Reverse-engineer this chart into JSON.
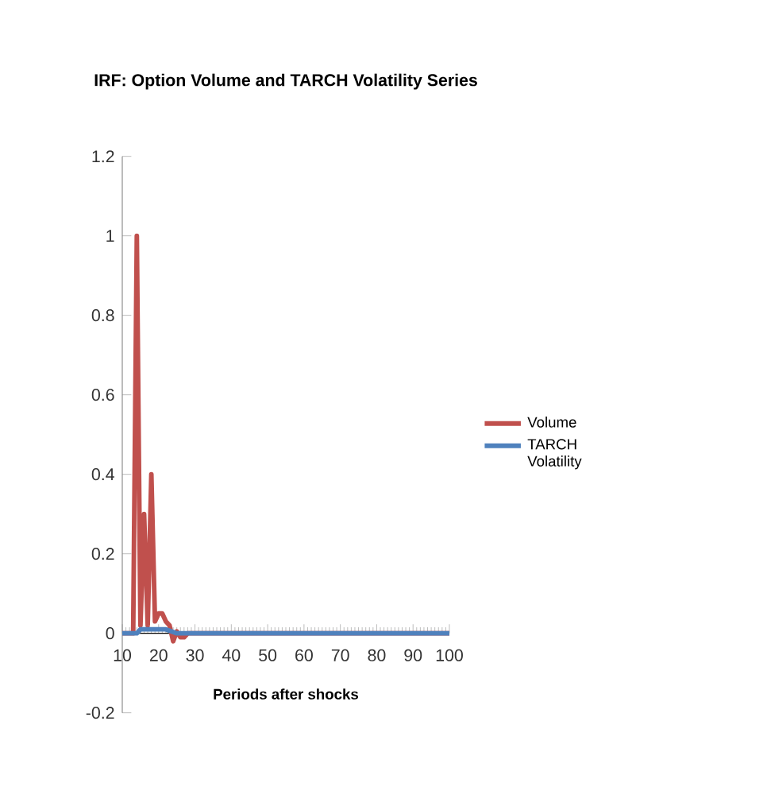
{
  "chart_data": {
    "type": "line",
    "title": "IRF: Option Volume and TARCH Volatility Series",
    "xlabel": "Periods after shocks",
    "xlim": [
      10,
      100
    ],
    "xticks": [
      10,
      20,
      30,
      40,
      50,
      60,
      70,
      80,
      90,
      100
    ],
    "ylim": [
      -0.2,
      1.2
    ],
    "yticks": [
      -0.2,
      0,
      0.2,
      0.4,
      0.6,
      0.8,
      1,
      1.2
    ],
    "grid": false,
    "legend": "right",
    "marker": "none",
    "line_style": "solid",
    "series": [
      {
        "name": "Volume",
        "color": "#c0504d",
        "x": [
          10,
          13,
          14,
          15,
          16,
          17,
          18,
          19,
          20,
          21,
          22,
          23,
          24,
          25,
          26,
          27,
          28,
          30,
          100
        ],
        "values": [
          0,
          0,
          1,
          0.02,
          0.3,
          0.02,
          0.4,
          0.03,
          0.05,
          0.05,
          0.03,
          0.02,
          -0.02,
          0.005,
          -0.01,
          -0.01,
          0,
          0,
          0
        ]
      },
      {
        "name": "TARCH Volatility",
        "color": "#4f81bd",
        "x": [
          10,
          14,
          15,
          18,
          22,
          25,
          100
        ],
        "values": [
          0,
          0,
          0.01,
          0.01,
          0.01,
          0,
          0
        ]
      }
    ]
  }
}
